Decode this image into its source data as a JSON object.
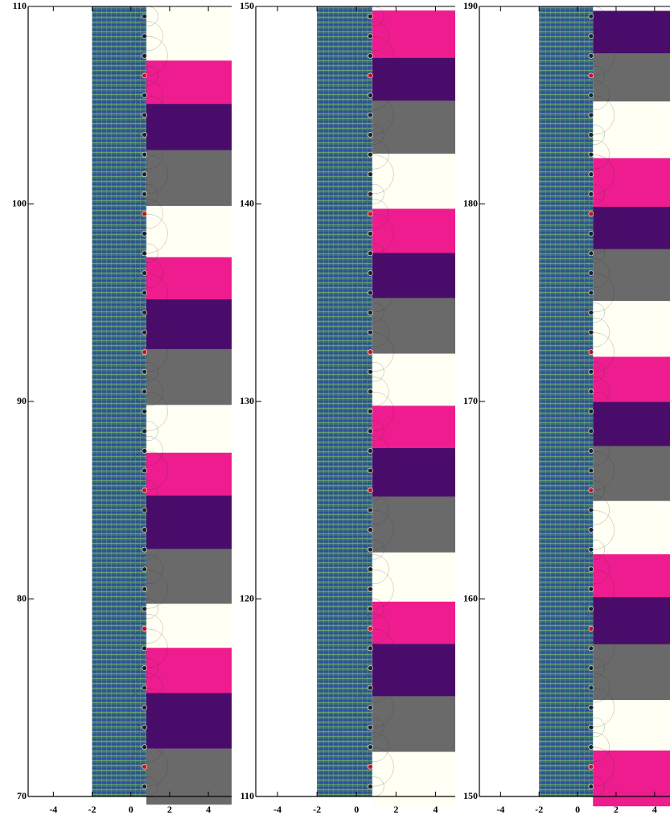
{
  "chart_data": [
    {
      "type": "phase-plot",
      "xlim": [
        -5.3,
        5.2
      ],
      "ylim": [
        70,
        110
      ],
      "xticks": [
        -4,
        -2,
        0,
        2,
        4
      ],
      "yticks": [
        70,
        80,
        90,
        100,
        110
      ]
    },
    {
      "type": "phase-plot",
      "xlim": [
        -5.1,
        5.0
      ],
      "ylim": [
        110,
        150
      ],
      "xticks": [
        -4,
        -2,
        0,
        2,
        4
      ],
      "yticks": [
        110,
        120,
        130,
        140,
        150
      ]
    },
    {
      "type": "phase-plot",
      "xlim": [
        -5.1,
        4.8
      ],
      "ylim": [
        150,
        190
      ],
      "xticks": [
        -4,
        -2,
        0,
        2,
        4
      ],
      "yticks": [
        150,
        160,
        170,
        180,
        190
      ]
    }
  ]
}
